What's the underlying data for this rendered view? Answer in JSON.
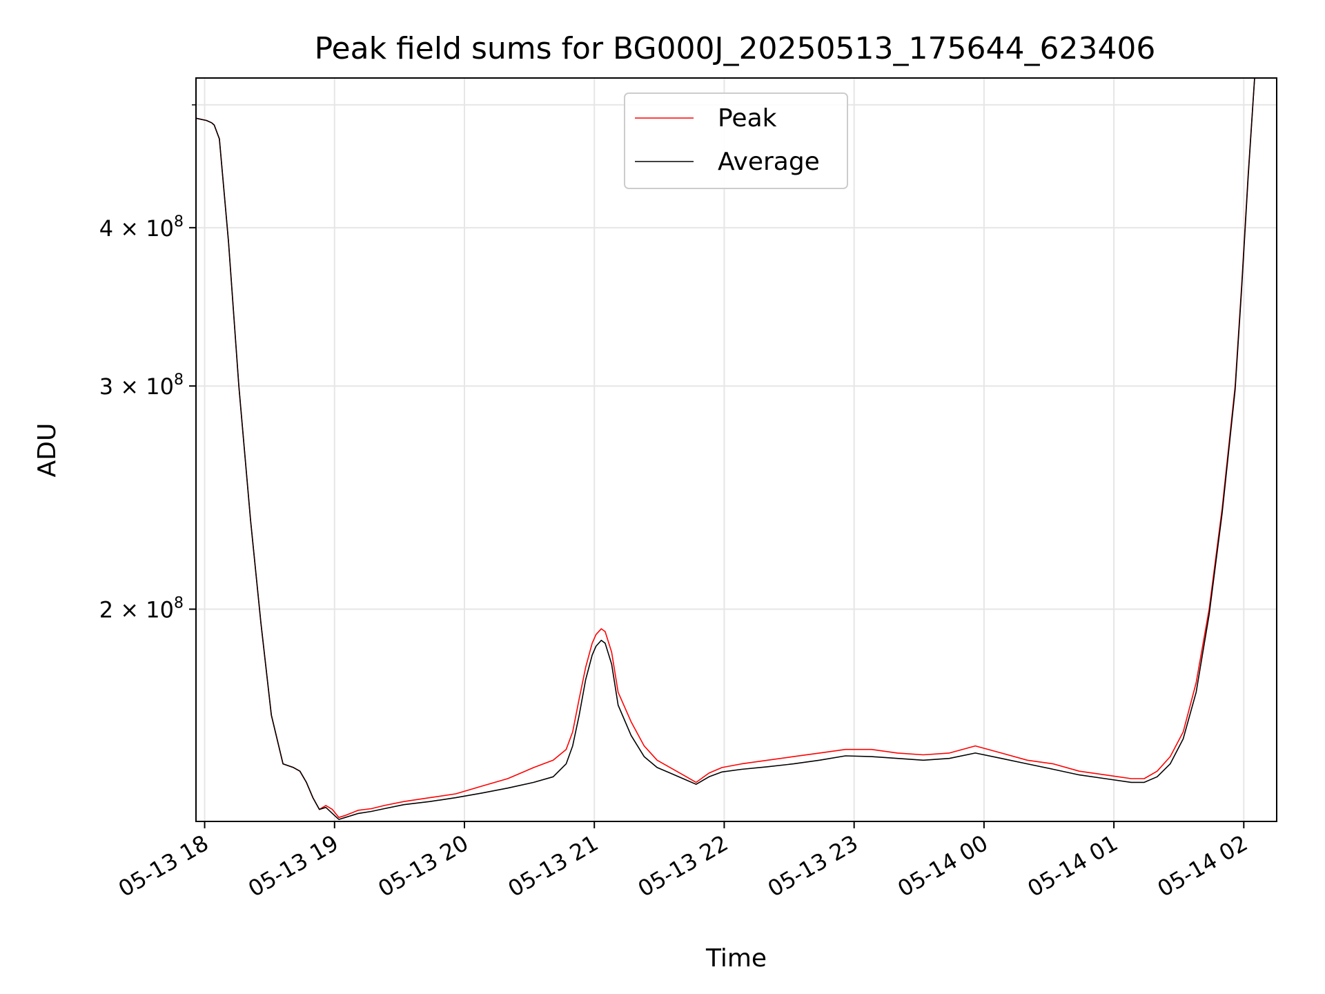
{
  "chart_data": {
    "type": "line",
    "title": "Peak field sums for BG000J_20250513_175644_623406",
    "xlabel": "Time",
    "ylabel": "ADU",
    "yscale": "log",
    "xlim": [
      "05-13 17:56",
      "05-14 02:15"
    ],
    "ylim": [
      136000000,
      525000000
    ],
    "x_tick_labels": [
      "05-13 18",
      "05-13 19",
      "05-13 20",
      "05-13 21",
      "05-13 22",
      "05-13 23",
      "05-14 00",
      "05-14 01",
      "05-14 02"
    ],
    "y_tick_labels": [
      {
        "value": 200000000,
        "mantissa": "2",
        "base": "10",
        "exponent": "8"
      },
      {
        "value": 300000000,
        "mantissa": "3",
        "base": "10",
        "exponent": "8"
      },
      {
        "value": 400000000,
        "mantissa": "4",
        "base": "10",
        "exponent": "8"
      }
    ],
    "grid": true,
    "legend_position": "top-center",
    "x_hours": [
      0.0,
      0.08,
      0.12,
      0.14,
      0.18,
      0.25,
      0.33,
      0.42,
      0.5,
      0.58,
      0.67,
      0.75,
      0.8,
      0.85,
      0.9,
      0.95,
      1.0,
      1.05,
      1.1,
      1.15,
      1.25,
      1.35,
      1.45,
      1.6,
      1.8,
      2.0,
      2.2,
      2.4,
      2.6,
      2.75,
      2.85,
      2.9,
      2.95,
      3.0,
      3.05,
      3.08,
      3.12,
      3.15,
      3.2,
      3.25,
      3.35,
      3.45,
      3.55,
      3.65,
      3.75,
      3.85,
      3.95,
      4.05,
      4.2,
      4.4,
      4.6,
      4.8,
      5.0,
      5.2,
      5.4,
      5.6,
      5.8,
      6.0,
      6.2,
      6.4,
      6.6,
      6.8,
      7.0,
      7.2,
      7.3,
      7.4,
      7.5,
      7.6,
      7.7,
      7.8,
      7.9,
      8.0,
      8.05,
      8.1,
      8.15
    ],
    "series": [
      {
        "name": "Peak",
        "color": "#ff0000",
        "values": [
          488000000,
          486000000,
          484000000,
          482000000,
          470000000,
          390000000,
          300000000,
          235000000,
          195000000,
          165000000,
          151000000,
          150000000,
          149000000,
          146000000,
          142000000,
          139000000,
          140000000,
          139000000,
          137000000,
          137500000,
          138800000,
          139200000,
          140000000,
          141000000,
          142000000,
          143000000,
          145000000,
          147000000,
          150000000,
          152000000,
          155000000,
          160000000,
          170000000,
          180000000,
          188000000,
          191000000,
          193000000,
          192000000,
          185000000,
          172000000,
          163000000,
          156000000,
          152000000,
          150000000,
          148000000,
          146000000,
          148500000,
          150000000,
          151000000,
          152000000,
          153000000,
          154000000,
          155000000,
          155000000,
          154000000,
          153500000,
          154000000,
          156000000,
          154000000,
          152000000,
          151000000,
          149000000,
          148000000,
          147000000,
          147000000,
          149000000,
          153000000,
          160000000,
          175000000,
          200000000,
          240000000,
          300000000,
          360000000,
          440000000,
          525000000
        ]
      },
      {
        "name": "Average",
        "color": "#000000",
        "values": [
          488000000,
          486000000,
          484000000,
          482000000,
          470000000,
          390000000,
          300000000,
          235000000,
          195000000,
          165000000,
          151000000,
          150000000,
          149000000,
          146000000,
          142000000,
          139000000,
          139500000,
          138000000,
          136500000,
          137000000,
          138000000,
          138500000,
          139200000,
          140200000,
          141000000,
          142000000,
          143200000,
          144500000,
          146000000,
          147500000,
          151000000,
          156000000,
          165000000,
          176000000,
          184000000,
          187000000,
          189000000,
          188000000,
          181000000,
          168000000,
          159000000,
          153000000,
          150000000,
          148500000,
          147000000,
          145500000,
          147500000,
          148800000,
          149500000,
          150200000,
          151000000,
          152000000,
          153200000,
          153000000,
          152500000,
          152000000,
          152500000,
          154000000,
          152500000,
          151000000,
          149500000,
          148000000,
          147000000,
          146000000,
          146000000,
          147500000,
          151000000,
          158000000,
          172000000,
          198000000,
          238000000,
          298000000,
          358000000,
          438000000,
          525000000
        ]
      }
    ]
  }
}
